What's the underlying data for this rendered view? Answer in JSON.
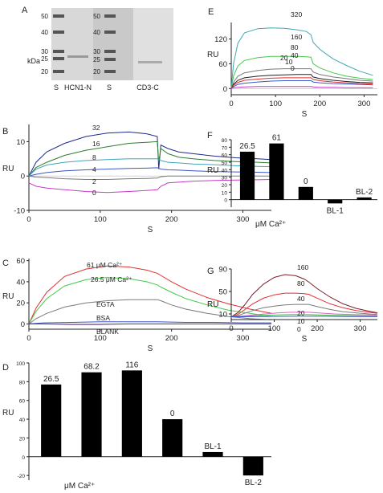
{
  "colors": {
    "navy": "#1f2a8a",
    "blue": "#3a57c9",
    "teal": "#3fa7b8",
    "green": "#46c94a",
    "darkgreen": "#2e7d2e",
    "gray": "#7a7a7a",
    "dark": "#222222",
    "magenta": "#c63bc9",
    "red": "#e23030",
    "maroon": "#7a1f2a",
    "pink": "#e05fc8",
    "purple": "#5a2a8a",
    "bar": "#000000"
  },
  "chart_data": [
    {
      "panel": "A",
      "type": "gel",
      "panel_label": "A",
      "unit": "kDa",
      "left_markers": [
        "50",
        "40",
        "30",
        "25",
        "20"
      ],
      "right_markers": [
        "50",
        "40",
        "30",
        "25",
        "20"
      ],
      "lane_labels": [
        "S",
        "HCN1-N",
        "S",
        "CD3-C"
      ]
    },
    {
      "panel": "B",
      "type": "line",
      "panel_label": "B",
      "xlabel": "S",
      "ylabel": "RU",
      "xlim": [
        0,
        340
      ],
      "ylim": [
        -10,
        15
      ],
      "xticks": [
        "0",
        "100",
        "200",
        "300"
      ],
      "yticks": [
        "-10",
        "0",
        "10"
      ],
      "series": [
        {
          "name": "32",
          "color": "#1f2a8a",
          "x": [
            0,
            10,
            25,
            50,
            80,
            110,
            140,
            165,
            180,
            182,
            185,
            195,
            210,
            230,
            260,
            290,
            320,
            340
          ],
          "y": [
            0,
            4,
            7,
            9.5,
            11.5,
            12.5,
            12.8,
            12.3,
            11.5,
            2,
            9,
            8,
            7,
            6.5,
            5.8,
            5.3,
            5,
            4.8
          ]
        },
        {
          "name": "16",
          "color": "#2e7d2e",
          "x": [
            0,
            10,
            25,
            50,
            80,
            110,
            140,
            165,
            180,
            182,
            185,
            195,
            210,
            230,
            260,
            290,
            320,
            340
          ],
          "y": [
            0,
            2.5,
            4,
            6,
            7.5,
            8.5,
            9.5,
            9.8,
            10,
            4,
            8,
            6.5,
            5.5,
            5,
            4.5,
            4.2,
            4,
            3.8
          ]
        },
        {
          "name": "8",
          "color": "#3fa7b8",
          "x": [
            0,
            10,
            25,
            50,
            80,
            110,
            140,
            165,
            180,
            185,
            195,
            210,
            230,
            260,
            290,
            320,
            340
          ],
          "y": [
            0,
            2,
            3.2,
            4,
            4.5,
            4.8,
            5,
            5,
            5,
            4.5,
            4,
            3.8,
            3.5,
            3.3,
            3,
            2.8,
            2.7
          ]
        },
        {
          "name": "4",
          "color": "#3a57c9",
          "x": [
            0,
            10,
            25,
            50,
            80,
            110,
            140,
            165,
            180,
            185,
            195,
            210,
            230,
            260,
            290,
            320,
            340
          ],
          "y": [
            0,
            0.5,
            1,
            1.5,
            1.8,
            2,
            2.2,
            2.3,
            2.4,
            2,
            1.8,
            1.7,
            1.5,
            1.3,
            1.2,
            1.1,
            1
          ]
        },
        {
          "name": "2",
          "color": "#7a7a7a",
          "x": [
            0,
            10,
            25,
            50,
            80,
            110,
            140,
            165,
            180,
            185,
            195,
            210,
            230,
            260,
            290,
            320,
            340
          ],
          "y": [
            0,
            -0.3,
            -0.5,
            -0.8,
            -1,
            -1,
            -0.8,
            -0.7,
            -0.6,
            -0.2,
            0,
            0,
            0,
            0,
            0,
            0,
            0
          ]
        },
        {
          "name": "0",
          "color": "#c63bc9",
          "x": [
            0,
            10,
            25,
            50,
            80,
            110,
            140,
            165,
            180,
            185,
            195,
            210,
            230,
            260,
            290,
            320,
            340
          ],
          "y": [
            -2,
            -3,
            -3.5,
            -4,
            -4.5,
            -4.8,
            -4.5,
            -4.2,
            -4,
            -3,
            -2,
            -1.8,
            -1.5,
            -1.3,
            -1.2,
            -1.1,
            -1
          ]
        }
      ]
    },
    {
      "panel": "C",
      "type": "line",
      "panel_label": "C",
      "xlabel": "S",
      "ylabel": "RU",
      "xlim": [
        0,
        340
      ],
      "ylim": [
        -5,
        62
      ],
      "xticks": [
        "0",
        "100",
        "200",
        "300"
      ],
      "yticks": [
        "0",
        "20",
        "40",
        "60"
      ],
      "series": [
        {
          "name": "61 μM Ca²⁺",
          "color": "#e23030",
          "x": [
            0,
            10,
            25,
            50,
            80,
            110,
            140,
            165,
            180,
            185,
            200,
            220,
            250,
            280,
            310,
            340
          ],
          "y": [
            0,
            15,
            30,
            45,
            52,
            55,
            54,
            51,
            48,
            46,
            40,
            33,
            25,
            19,
            14,
            10
          ]
        },
        {
          "name": "26.5 μM Ca²⁺",
          "color": "#46c94a",
          "x": [
            0,
            10,
            25,
            50,
            80,
            110,
            140,
            165,
            180,
            185,
            200,
            220,
            250,
            280,
            310,
            340
          ],
          "y": [
            0,
            12,
            24,
            36,
            42,
            44,
            43,
            40,
            37,
            35,
            30,
            24,
            18,
            13,
            10,
            7
          ]
        },
        {
          "name": "EGTA",
          "color": "#7a7a7a",
          "x": [
            0,
            10,
            25,
            50,
            80,
            110,
            140,
            165,
            180,
            185,
            200,
            220,
            250,
            280,
            310,
            340
          ],
          "y": [
            0,
            5,
            10,
            16,
            20,
            22,
            23,
            23,
            23,
            22,
            18,
            14,
            10,
            7,
            5,
            4
          ]
        },
        {
          "name": "BSA",
          "color": "#3a57c9",
          "x": [
            0,
            20,
            60,
            100,
            140,
            180,
            220,
            260,
            300,
            340
          ],
          "y": [
            0,
            1,
            1.5,
            2,
            2,
            2,
            1.5,
            1.5,
            1,
            1
          ]
        },
        {
          "name": "BLANK",
          "color": "#5a2a8a",
          "x": [
            0,
            20,
            60,
            100,
            140,
            180,
            220,
            260,
            300,
            340
          ],
          "y": [
            0,
            0,
            -0.5,
            -0.5,
            0,
            0,
            0,
            0,
            0,
            0
          ]
        }
      ]
    },
    {
      "panel": "D",
      "type": "bar",
      "panel_label": "D",
      "ylabel": "RU",
      "xlabel": "μM Ca²⁺",
      "ylim": [
        -25,
        100
      ],
      "yticks": [
        "-20",
        "0",
        "20",
        "40",
        "60",
        "80",
        "100"
      ],
      "categories": [
        "26.5",
        "68.2",
        "116",
        "0",
        "BL-1",
        "BL-2"
      ],
      "values": [
        77,
        90,
        92,
        40,
        5,
        -20
      ]
    },
    {
      "panel": "E",
      "type": "line",
      "panel_label": "E",
      "xlabel": "S",
      "ylabel": "RU",
      "xlim": [
        0,
        330
      ],
      "ylim": [
        -15,
        160
      ],
      "xticks": [
        "0",
        "100",
        "200",
        "300"
      ],
      "yticks": [
        "0",
        "60",
        "120"
      ],
      "series": [
        {
          "name": "320",
          "color": "#3fa7b8",
          "x": [
            0,
            5,
            15,
            30,
            60,
            90,
            120,
            150,
            170,
            180,
            185,
            200,
            230,
            260,
            290,
            320
          ],
          "y": [
            0,
            60,
            110,
            135,
            145,
            147,
            146,
            142,
            138,
            130,
            112,
            95,
            72,
            56,
            42,
            32
          ]
        },
        {
          "name": "160",
          "color": "#46c94a",
          "x": [
            0,
            5,
            15,
            30,
            60,
            90,
            120,
            150,
            170,
            180,
            185,
            200,
            230,
            260,
            290,
            320
          ],
          "y": [
            0,
            30,
            55,
            68,
            75,
            78,
            78,
            78,
            77,
            76,
            60,
            50,
            38,
            30,
            25,
            22
          ]
        },
        {
          "name": "80",
          "color": "#7a7a7a",
          "x": [
            0,
            5,
            15,
            30,
            60,
            90,
            120,
            150,
            170,
            180,
            185,
            200,
            230,
            260,
            290,
            320
          ],
          "y": [
            0,
            15,
            30,
            38,
            44,
            47,
            48,
            48,
            48,
            48,
            40,
            34,
            28,
            24,
            20,
            18
          ]
        },
        {
          "name": "40",
          "color": "#222222",
          "x": [
            0,
            5,
            15,
            30,
            60,
            90,
            120,
            150,
            170,
            180,
            185,
            200,
            230,
            260,
            290,
            320
          ],
          "y": [
            0,
            10,
            20,
            26,
            30,
            32,
            33,
            34,
            34,
            34,
            28,
            24,
            20,
            17,
            15,
            14
          ]
        },
        {
          "name": "20",
          "color": "#e23030",
          "x": [
            0,
            5,
            15,
            30,
            60,
            90,
            120,
            150,
            170,
            180,
            185,
            200,
            230,
            260,
            290,
            320
          ],
          "y": [
            0,
            8,
            15,
            20,
            23,
            25,
            26,
            26,
            26,
            26,
            22,
            19,
            16,
            14,
            12,
            11
          ]
        },
        {
          "name": "10",
          "color": "#3a57c9",
          "x": [
            0,
            5,
            15,
            30,
            60,
            90,
            120,
            150,
            170,
            180,
            185,
            200,
            230,
            260,
            290,
            320
          ],
          "y": [
            0,
            5,
            10,
            13,
            16,
            18,
            19,
            19,
            19,
            19,
            16,
            14,
            12,
            11,
            10,
            9
          ]
        },
        {
          "name": "0",
          "color": "#c63bc9",
          "x": [
            0,
            5,
            15,
            30,
            60,
            90,
            120,
            150,
            170,
            180,
            185,
            200,
            230,
            260,
            290,
            320
          ],
          "y": [
            0,
            2,
            3,
            4,
            5,
            5,
            5,
            5,
            5,
            5,
            4,
            3,
            3,
            2,
            2,
            2
          ]
        }
      ]
    },
    {
      "panel": "F",
      "type": "bar",
      "panel_label": "F",
      "ylabel": "RU",
      "xlabel": "μM Ca²⁺",
      "ylim": [
        -10,
        80
      ],
      "yticks": [
        "0",
        "10",
        "20",
        "30",
        "40",
        "50",
        "60",
        "70",
        "80"
      ],
      "categories": [
        "26.5",
        "61",
        "0",
        "BL-1",
        "BL-2"
      ],
      "values": [
        64,
        75,
        17,
        -5,
        3
      ]
    },
    {
      "panel": "G",
      "type": "line",
      "panel_label": "G",
      "xlabel": "S",
      "ylabel": "RU",
      "xlim": [
        0,
        340
      ],
      "ylim": [
        0,
        90
      ],
      "xticks": [
        "0",
        "100",
        "200",
        "300"
      ],
      "yticks": [
        "10",
        "50",
        "90"
      ],
      "series": [
        {
          "name": "160",
          "color": "#7a1f2a",
          "x": [
            0,
            15,
            30,
            50,
            75,
            100,
            125,
            150,
            170,
            180,
            200,
            230,
            260,
            290,
            320,
            340
          ],
          "y": [
            5,
            12,
            25,
            45,
            63,
            75,
            80,
            78,
            72,
            67,
            55,
            40,
            28,
            20,
            15,
            12
          ]
        },
        {
          "name": "80",
          "color": "#e23030",
          "x": [
            0,
            15,
            30,
            50,
            75,
            100,
            125,
            150,
            170,
            180,
            200,
            230,
            260,
            290,
            320,
            340
          ],
          "y": [
            5,
            9,
            17,
            28,
            38,
            44,
            47,
            47,
            46,
            45,
            38,
            28,
            21,
            16,
            13,
            11
          ]
        },
        {
          "name": "40",
          "color": "#7a7a7a",
          "x": [
            0,
            15,
            30,
            50,
            75,
            100,
            125,
            150,
            170,
            180,
            200,
            230,
            260,
            290,
            320,
            340
          ],
          "y": [
            5,
            7,
            11,
            16,
            21,
            24,
            26,
            27,
            27,
            27,
            23,
            18,
            14,
            12,
            10,
            9
          ]
        },
        {
          "name": "20",
          "color": "#e05fc8",
          "x": [
            0,
            20,
            50,
            80,
            110,
            140,
            170,
            180,
            200,
            240,
            280,
            340
          ],
          "y": [
            5,
            6,
            8,
            10,
            12,
            13,
            13,
            13,
            12,
            10,
            9,
            8
          ]
        },
        {
          "name": "10",
          "color": "#46c94a",
          "x": [
            0,
            20,
            50,
            80,
            110,
            140,
            170,
            180,
            200,
            240,
            280,
            340
          ],
          "y": [
            5,
            5.5,
            6.5,
            7.5,
            8.5,
            9,
            9,
            9,
            8.5,
            7.5,
            7,
            6.5
          ]
        },
        {
          "name": "0",
          "color": "#3a57c9",
          "x": [
            0,
            30,
            60,
            100,
            140,
            180,
            220,
            260,
            300,
            340
          ],
          "y": [
            5,
            5,
            5.3,
            5.5,
            5.8,
            6,
            5.8,
            5.5,
            5.3,
            5.2
          ]
        }
      ]
    }
  ]
}
